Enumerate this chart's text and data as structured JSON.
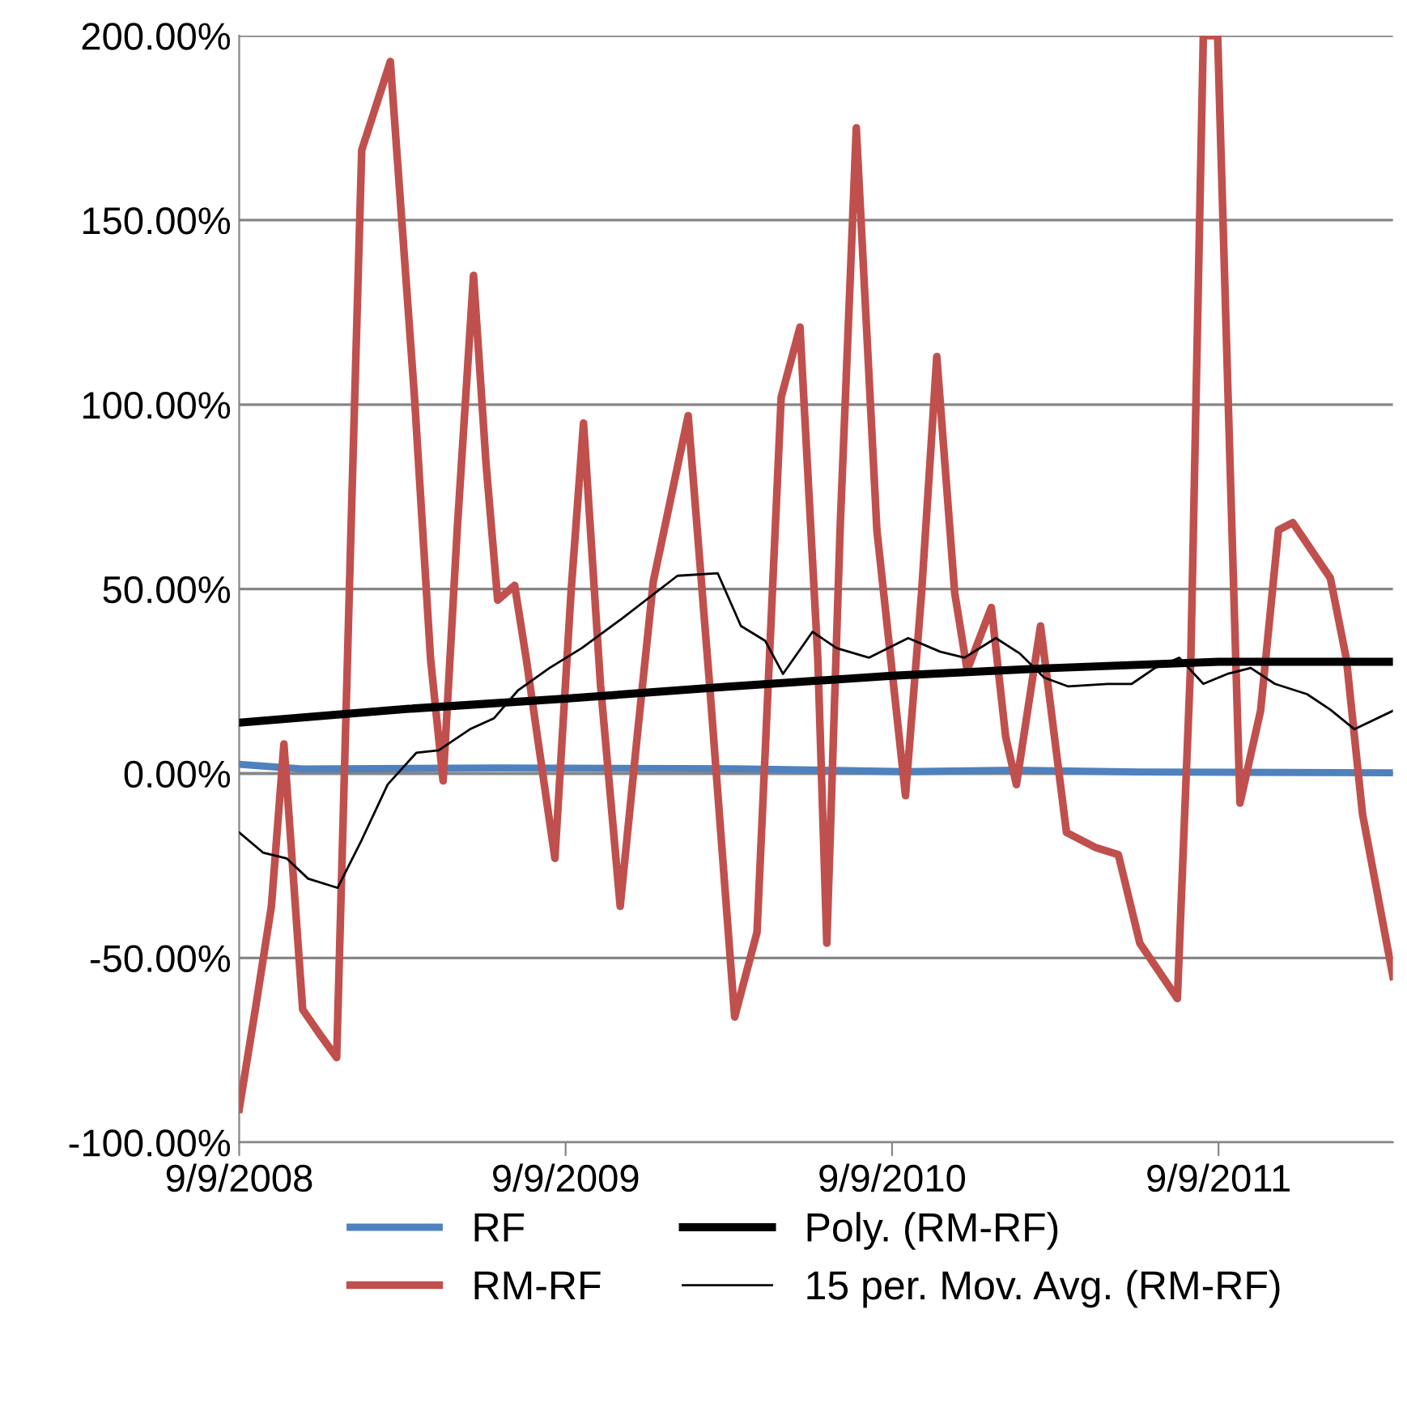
{
  "chart_data": {
    "type": "line",
    "xlim": [
      "2008-09-09",
      "2012-03-22"
    ],
    "xticks": [
      {
        "value": "2008-09-09",
        "label": "9/9/2008"
      },
      {
        "value": "2009-09-09",
        "label": "9/9/2009"
      },
      {
        "value": "2010-09-09",
        "label": "9/9/2010"
      },
      {
        "value": "2011-09-09",
        "label": "9/9/2011"
      }
    ],
    "ylim": [
      -100,
      200
    ],
    "yticks": [
      {
        "value": -100,
        "label": "-100.00%"
      },
      {
        "value": -50,
        "label": "-50.00%"
      },
      {
        "value": 0,
        "label": "0.00%"
      },
      {
        "value": 50,
        "label": "50.00%"
      },
      {
        "value": 100,
        "label": "100.00%"
      },
      {
        "value": 150,
        "label": "150.00%"
      },
      {
        "value": 200,
        "label": "200.00%"
      }
    ],
    "grid": "y",
    "legend": "bottom",
    "series": [
      {
        "name": "RF",
        "color": "#4f81bd",
        "x": [
          "2008-09-09",
          "2008-11-19",
          "2009-06-25",
          "2010-03-17",
          "2010-09-24",
          "2011-01-26",
          "2011-06-13",
          "2012-03-22"
        ],
        "values": [
          2.5,
          1.2,
          1.5,
          1.3,
          0.5,
          0.9,
          0.4,
          0.2
        ]
      },
      {
        "name": "RM-RF",
        "color": "#c0504d",
        "x": [
          "2008-09-09",
          "2008-09-27",
          "2008-10-15",
          "2008-10-29",
          "2008-11-19",
          "2008-12-09",
          "2008-12-27",
          "2009-01-12",
          "2009-01-24",
          "2009-02-25",
          "2009-03-24",
          "2009-04-11",
          "2009-04-25",
          "2009-05-11",
          "2009-05-29",
          "2009-06-12",
          "2009-06-25",
          "2009-07-14",
          "2009-07-27",
          "2009-08-28",
          "2009-09-15",
          "2009-09-29",
          "2009-10-18",
          "2009-11-09",
          "2009-11-28",
          "2009-12-16",
          "2010-01-24",
          "2010-02-17",
          "2010-03-17",
          "2010-04-11",
          "2010-05-08",
          "2010-05-29",
          "2010-06-18",
          "2010-06-28",
          "2010-07-13",
          "2010-07-31",
          "2010-08-23",
          "2010-09-24",
          "2010-10-12",
          "2010-10-29",
          "2010-11-18",
          "2010-12-02",
          "2010-12-29",
          "2011-01-14",
          "2011-01-26",
          "2011-02-22",
          "2011-03-23",
          "2011-04-24",
          "2011-05-20",
          "2011-06-13",
          "2011-07-25",
          "2011-08-09",
          "2011-08-23",
          "2011-09-08",
          "2011-09-24",
          "2011-10-03",
          "2011-10-26",
          "2011-11-15",
          "2011-12-01",
          "2012-01-12",
          "2012-01-30",
          "2012-02-17",
          "2012-03-22"
        ],
        "values": [
          -91,
          -64,
          -36,
          8,
          -64,
          -71,
          -77,
          66,
          169,
          193,
          102,
          31,
          -2,
          67,
          135,
          84,
          47,
          51,
          31,
          -23,
          49,
          95,
          24,
          -36,
          10,
          52,
          97,
          24,
          -66,
          -43,
          102,
          121,
          31,
          -46,
          67,
          175,
          66,
          -6,
          49,
          113,
          49,
          28,
          45,
          10,
          -3,
          40,
          -16,
          -20,
          -22,
          -46,
          -61,
          31,
          200,
          200,
          66,
          -8,
          17,
          66,
          68,
          53,
          31,
          -11,
          -55
        ]
      },
      {
        "name": "Poly. (RM-RF)",
        "color": "#000000",
        "x": [
          "2008-09-09",
          "2009-03-15",
          "2009-09-09",
          "2010-03-06",
          "2010-09-09",
          "2011-02-26",
          "2011-09-09",
          "2012-03-22"
        ],
        "values": [
          13.8,
          17.5,
          20.3,
          23.5,
          26.5,
          28.5,
          30.3,
          30.3
        ]
      },
      {
        "name": "15 per. Mov. Avg. (RM-RF)",
        "color": "#000000",
        "x": [
          "2008-09-09",
          "2008-10-06",
          "2008-11-01",
          "2008-11-25",
          "2008-12-28",
          "2009-01-24",
          "2009-02-22",
          "2009-03-26",
          "2009-04-20",
          "2009-05-25",
          "2009-06-21",
          "2009-07-18",
          "2009-08-22",
          "2009-09-27",
          "2009-11-11",
          "2010-01-12",
          "2010-02-26",
          "2010-03-24",
          "2010-04-20",
          "2010-05-10",
          "2010-06-12",
          "2010-07-09",
          "2010-08-14",
          "2010-09-27",
          "2010-11-02",
          "2010-11-29",
          "2011-01-03",
          "2011-01-30",
          "2011-02-26",
          "2011-03-25",
          "2011-05-08",
          "2011-06-04",
          "2011-06-30",
          "2011-07-27",
          "2011-08-23",
          "2011-09-19",
          "2011-10-15",
          "2011-11-11",
          "2011-12-17",
          "2012-01-12",
          "2012-02-08",
          "2012-03-22"
        ],
        "values": [
          -16,
          -21.5,
          -23,
          -28.5,
          -31,
          -18,
          -3,
          5.6,
          6.3,
          12,
          15,
          22.6,
          28.6,
          34,
          42,
          53.6,
          54.3,
          40,
          36,
          27,
          38.4,
          34,
          31.4,
          36.7,
          33,
          31.4,
          36.7,
          32.5,
          26,
          23.6,
          24.3,
          24.3,
          28.6,
          31.4,
          24.3,
          27,
          28.6,
          24.3,
          21.5,
          17.3,
          12,
          17
        ]
      }
    ]
  }
}
